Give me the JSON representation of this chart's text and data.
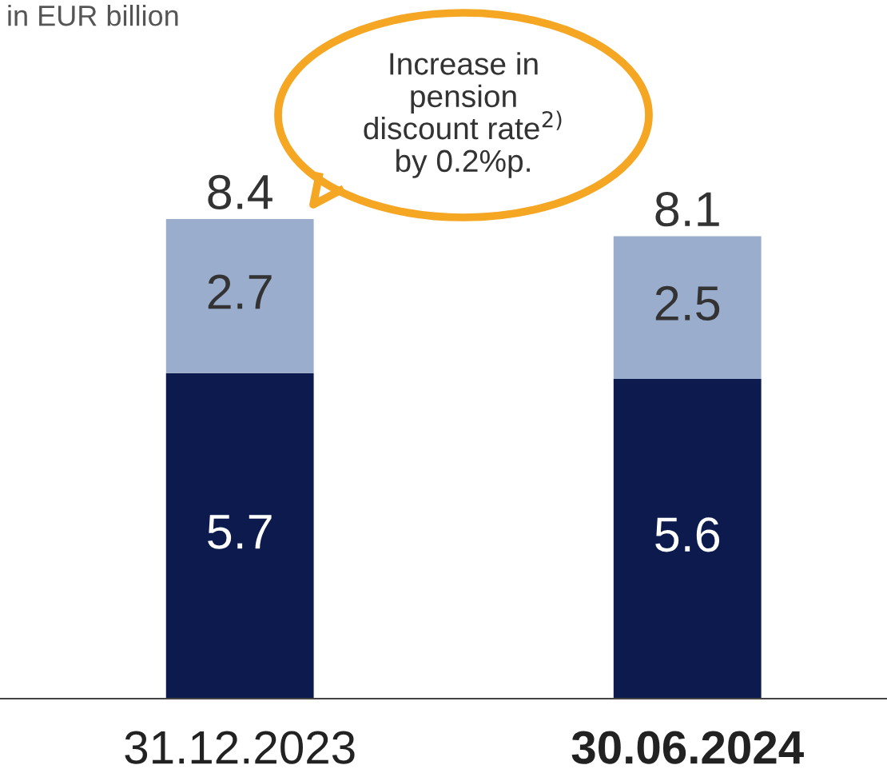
{
  "chart_data": {
    "type": "bar",
    "subtitle": "in EUR billion",
    "categories": [
      "31.12.2023",
      "30.06.2024"
    ],
    "stacked": true,
    "series": [
      {
        "color": "#0c1a4e",
        "values": [
          5.7,
          5.6
        ]
      },
      {
        "color": "#9aadcc",
        "values": [
          2.7,
          2.5
        ]
      }
    ],
    "data_labels": true,
    "totals": [
      "8.4",
      "8.1"
    ],
    "annotations": [
      "Increase in\npension\ndiscount rate$^{2)}$\nby 0.2%p."
    ],
    "legend": false,
    "grid": false
  }
}
